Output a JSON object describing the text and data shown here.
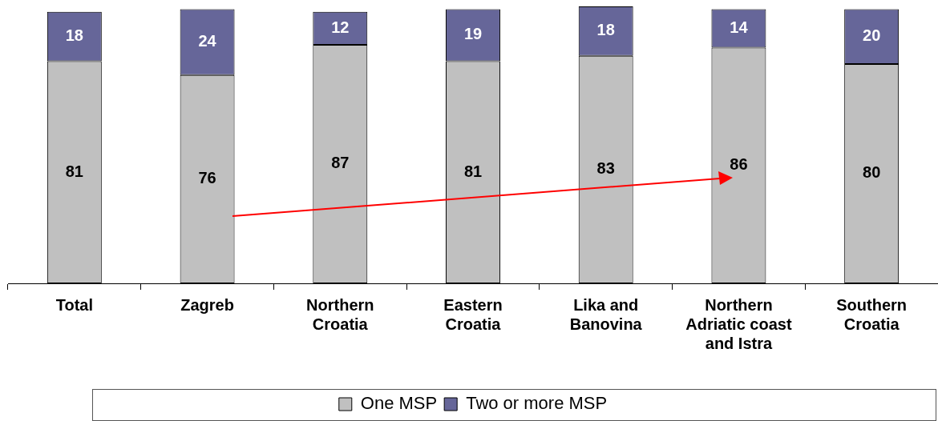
{
  "chart_data": {
    "type": "bar",
    "stacked": true,
    "data_labels": true,
    "legend": "bottom",
    "grid": false,
    "categories": [
      "Total",
      "Zagreb",
      "Northern Croatia",
      "Eastern Croatia",
      "Lika and Banovina",
      "Northern Adriatic coast and Istra",
      "Southern Croatia"
    ],
    "series": [
      {
        "name": "One MSP",
        "color": "#c0c0c0",
        "values": [
          81,
          76,
          87,
          81,
          83,
          86,
          80
        ]
      },
      {
        "name": "Two or more MSP",
        "color": "#666699",
        "values": [
          18,
          24,
          12,
          19,
          18,
          14,
          20
        ]
      }
    ]
  }
}
